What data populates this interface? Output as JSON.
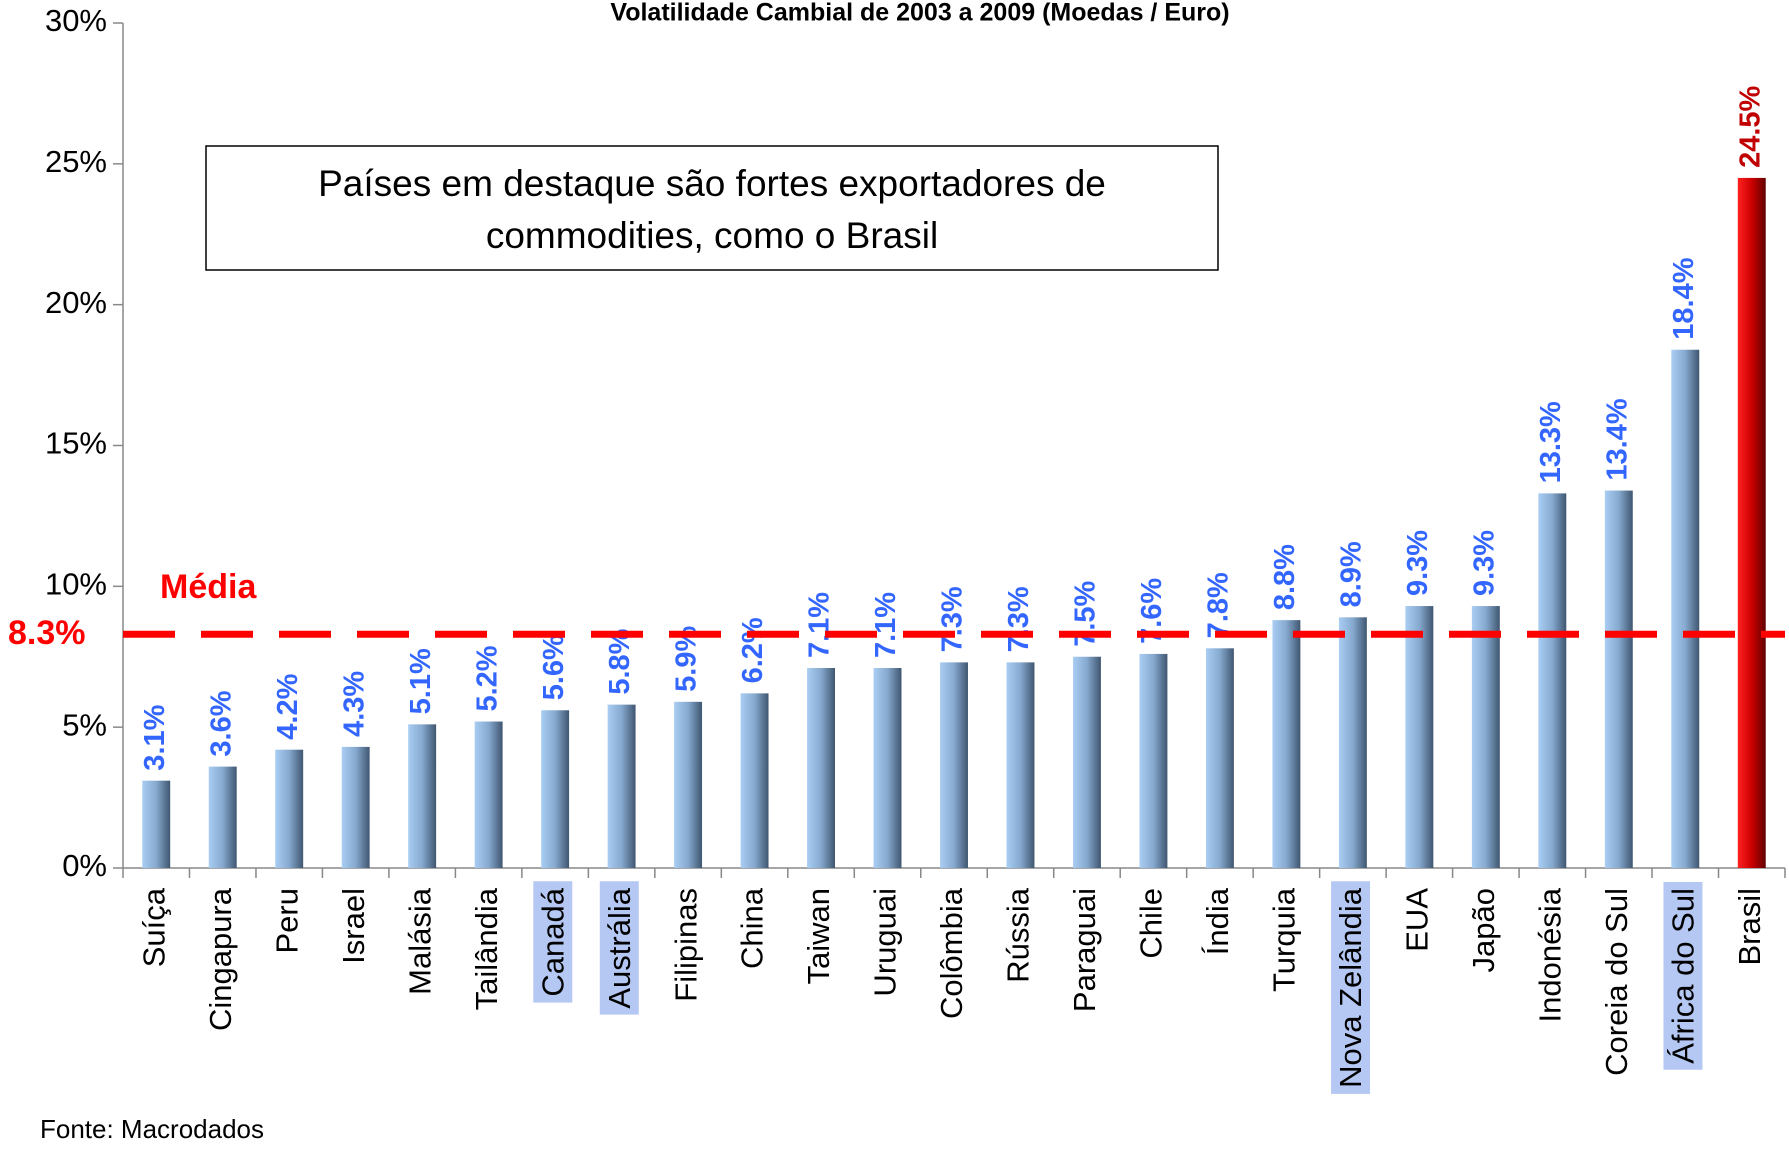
{
  "chart_data": {
    "type": "bar",
    "title": "Volatilidade Cambial de 2003 a 2009 (Moedas / Euro)",
    "categories": [
      "Suíça",
      "Cingapura",
      "Peru",
      "Israel",
      "Malásia",
      "Tailândia",
      "Canadá",
      "Austrália",
      "Filipinas",
      "China",
      "Taiwan",
      "Uruguai",
      "Colômbia",
      "Rússia",
      "Paraguai",
      "Chile",
      "Índia",
      "Turquia",
      "Nova Zelândia",
      "EUA",
      "Japão",
      "Indonésia",
      "Coreia do Sul",
      "África do Sul",
      "Brasil"
    ],
    "values": [
      3.1,
      3.6,
      4.2,
      4.3,
      5.1,
      5.2,
      5.6,
      5.8,
      5.9,
      6.2,
      7.1,
      7.1,
      7.3,
      7.3,
      7.5,
      7.6,
      7.8,
      8.8,
      8.9,
      9.3,
      9.3,
      13.3,
      13.4,
      18.4,
      24.5
    ],
    "value_labels": [
      "3.1%",
      "3.6%",
      "4.2%",
      "4.3%",
      "5.1%",
      "5.2%",
      "5.6%",
      "5.8%",
      "5.9%",
      "6.2%",
      "7.1%",
      "7.1%",
      "7.3%",
      "7.3%",
      "7.5%",
      "7.6%",
      "7.8%",
      "8.8%",
      "8.9%",
      "9.3%",
      "9.3%",
      "13.3%",
      "13.4%",
      "18.4%",
      "24.5%"
    ],
    "highlight": [
      false,
      false,
      false,
      false,
      false,
      false,
      true,
      true,
      false,
      false,
      false,
      false,
      false,
      false,
      false,
      false,
      false,
      false,
      true,
      false,
      false,
      false,
      false,
      true,
      false
    ],
    "accent": [
      false,
      false,
      false,
      false,
      false,
      false,
      false,
      false,
      false,
      false,
      false,
      false,
      false,
      false,
      false,
      false,
      false,
      false,
      false,
      false,
      false,
      false,
      false,
      false,
      true
    ],
    "color": "#6f8fb8",
    "accent_color": "#c00000",
    "label_color": "#3366ff",
    "ylim": [
      0,
      30
    ],
    "yticks": [
      {
        "value": 0,
        "label": "0%"
      },
      {
        "value": 5,
        "label": "5%"
      },
      {
        "value": 10,
        "label": "10%"
      },
      {
        "value": 15,
        "label": "15%"
      },
      {
        "value": 20,
        "label": "20%"
      },
      {
        "value": 25,
        "label": "25%"
      },
      {
        "value": 30,
        "label": "30%"
      }
    ],
    "reference_line": {
      "value": 8.3,
      "label": "Média",
      "value_label": "8.3%",
      "color": "#ff0000"
    },
    "annotation": [
      "Países em destaque são fortes exportadores de",
      "commodities, como o Brasil"
    ],
    "source": "Fonte: Macrodados"
  }
}
